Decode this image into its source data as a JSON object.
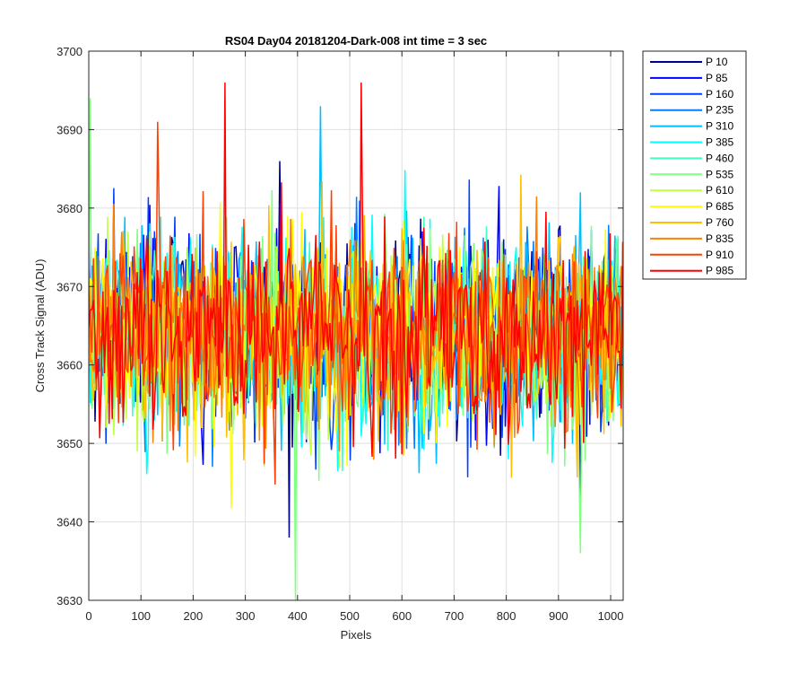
{
  "chart_data": {
    "type": "line",
    "title": "RS04 Day04 20181204-Dark-008 int time = 3 sec",
    "xlabel": "Pixels",
    "ylabel": "Cross Track Signal (ADU)",
    "xlim": [
      0,
      1024
    ],
    "ylim": [
      3630,
      3700
    ],
    "xticks": [
      0,
      100,
      200,
      300,
      400,
      500,
      600,
      700,
      800,
      900,
      1000
    ],
    "yticks": [
      3630,
      3640,
      3650,
      3660,
      3670,
      3680,
      3690,
      3700
    ],
    "grid": true,
    "legend_position": "outside-top-right",
    "noise": {
      "mean": 3664,
      "sd": 6.2,
      "min": 3630,
      "max": 3696
    },
    "series": [
      {
        "name": "P 10",
        "color": "#00008f"
      },
      {
        "name": "P 85",
        "color": "#0000ff"
      },
      {
        "name": "P 160",
        "color": "#0040ff"
      },
      {
        "name": "P 235",
        "color": "#0080ff"
      },
      {
        "name": "P 310",
        "color": "#00bfff"
      },
      {
        "name": "P 385",
        "color": "#00ffff"
      },
      {
        "name": "P 460",
        "color": "#40ffbf"
      },
      {
        "name": "P 535",
        "color": "#80ff80"
      },
      {
        "name": "P 610",
        "color": "#bfff40"
      },
      {
        "name": "P 685",
        "color": "#ffff00"
      },
      {
        "name": "P 760",
        "color": "#ffbf00"
      },
      {
        "name": "P 835",
        "color": "#ff8000"
      },
      {
        "name": "P 910",
        "color": "#ff4000"
      },
      {
        "name": "P 985",
        "color": "#ff0000"
      }
    ],
    "notable_values": [
      {
        "series": "P 985",
        "x": 262,
        "y": 3696
      },
      {
        "series": "P 985",
        "x": 522,
        "y": 3696
      },
      {
        "series": "P 535",
        "x": 3,
        "y": 3694
      },
      {
        "series": "P 310",
        "x": 443,
        "y": 3693
      },
      {
        "series": "P 910",
        "x": 133,
        "y": 3691
      },
      {
        "series": "P 535",
        "x": 395,
        "y": 3630
      },
      {
        "series": "P 10",
        "x": 385,
        "y": 3638
      },
      {
        "series": "P 535",
        "x": 942,
        "y": 3636
      }
    ]
  }
}
